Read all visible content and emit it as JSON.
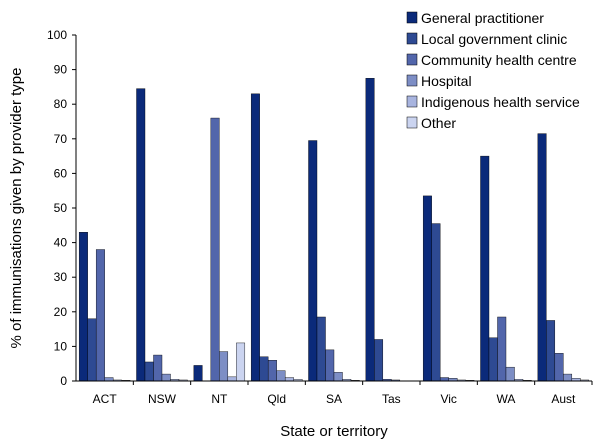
{
  "chart_data": {
    "type": "bar",
    "title": "",
    "xlabel": "State or territory",
    "ylabel": "% of immunisations given by provider type",
    "ylim": [
      0,
      100
    ],
    "yticks": [
      0,
      10,
      20,
      30,
      40,
      50,
      60,
      70,
      80,
      90,
      100
    ],
    "grid": false,
    "legend_position": "top-right",
    "categories": [
      "ACT",
      "NSW",
      "NT",
      "Qld",
      "SA",
      "Tas",
      "Vic",
      "WA",
      "Aust"
    ],
    "series": [
      {
        "name": "General practitioner",
        "color": "#0b2a7a",
        "values": [
          43,
          84.5,
          4.5,
          83,
          69.5,
          87.5,
          53.5,
          65,
          71.5
        ]
      },
      {
        "name": "Local government clinic",
        "color": "#2e4a93",
        "values": [
          18,
          5.5,
          0,
          7,
          18.5,
          12,
          45.5,
          12.5,
          17.5
        ]
      },
      {
        "name": "Community health centre",
        "color": "#5266ab",
        "values": [
          38,
          7.5,
          76,
          6,
          9,
          0.5,
          1,
          18.5,
          8
        ]
      },
      {
        "name": "Hospital",
        "color": "#7d8ec5",
        "values": [
          1,
          2,
          8.5,
          3,
          2.5,
          0.3,
          0.8,
          4,
          2
        ]
      },
      {
        "name": "Indigenous health service",
        "color": "#a8b4df",
        "values": [
          0.3,
          0.5,
          1.2,
          1,
          0.5,
          0,
          0.3,
          0.5,
          0.8
        ]
      },
      {
        "name": "Other",
        "color": "#cbd4f0",
        "values": [
          0.2,
          0.3,
          11,
          0.5,
          0.2,
          0,
          0.2,
          0.2,
          0.3
        ]
      }
    ]
  }
}
